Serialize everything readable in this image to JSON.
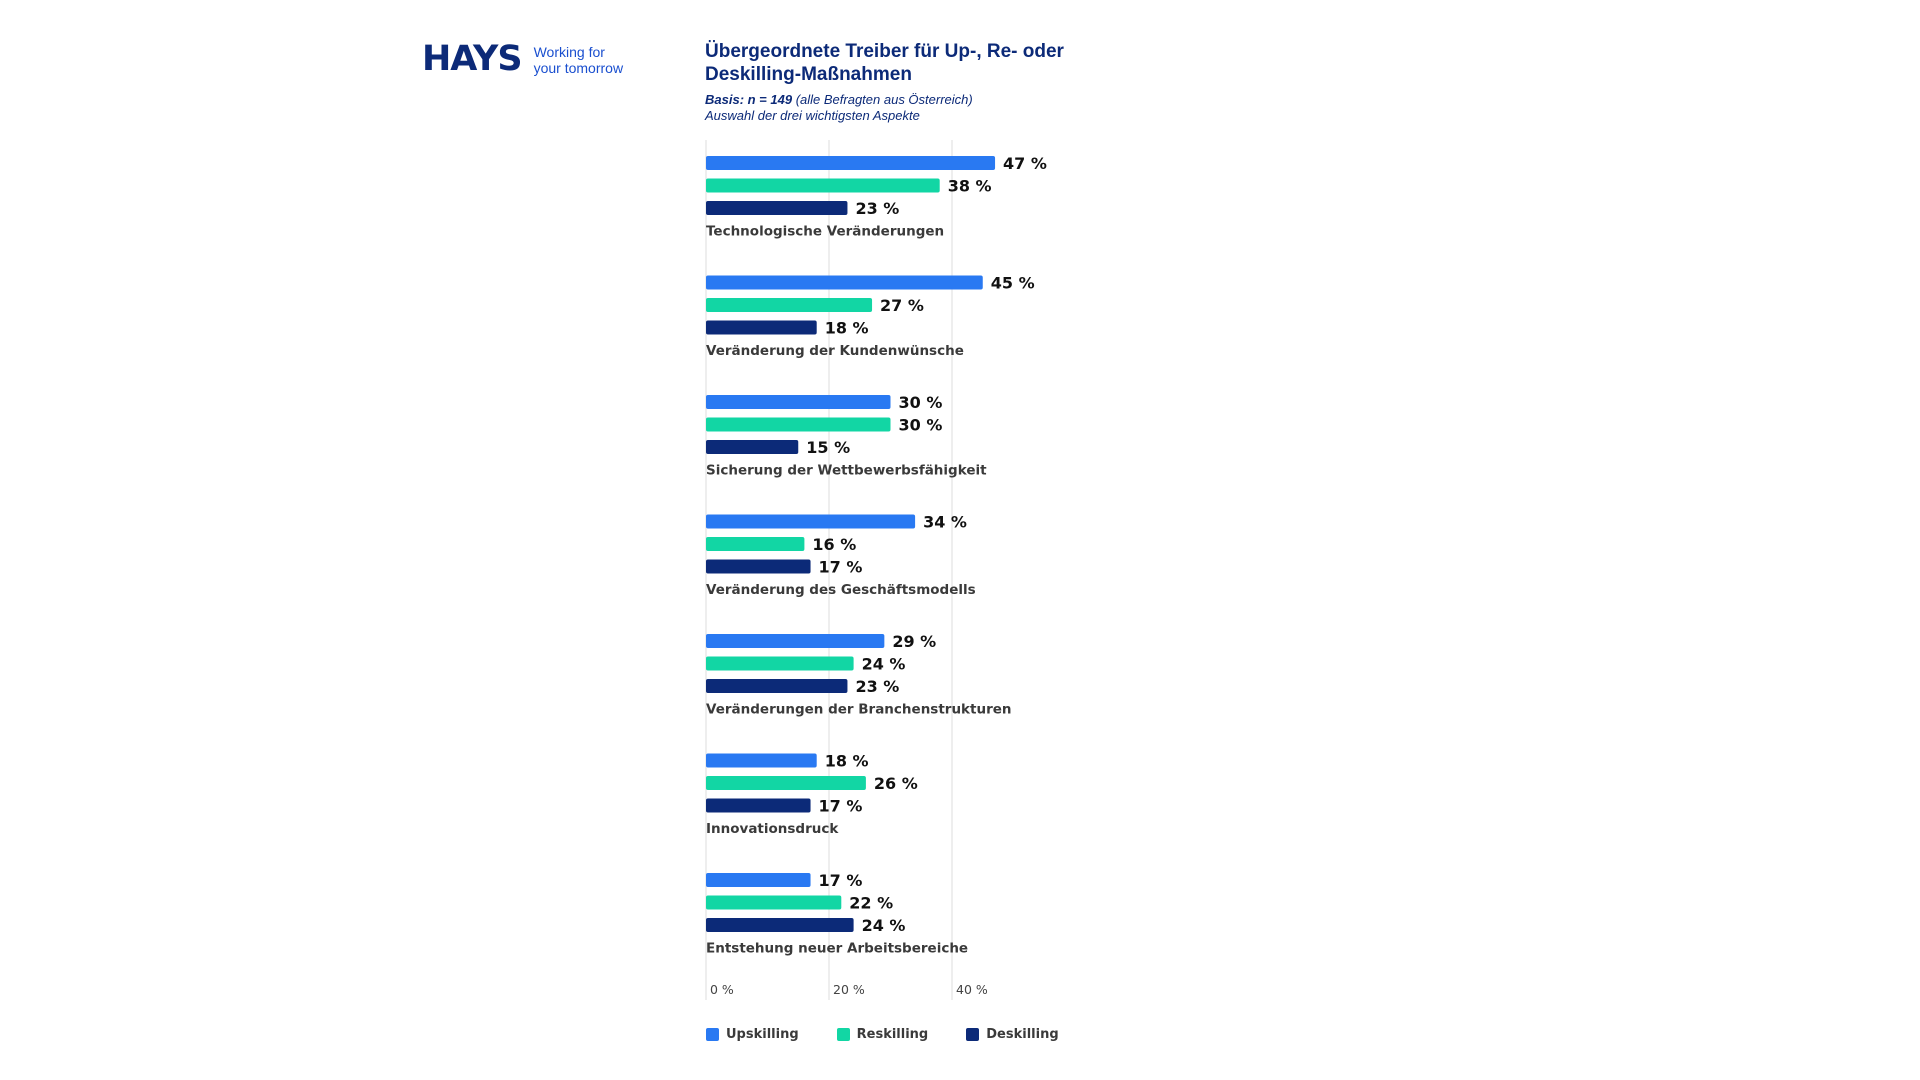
{
  "logo": {
    "brand": "HAYS",
    "tagline_1": "Working for",
    "tagline_2": "your tomorrow"
  },
  "header": {
    "title": "Übergeordnete Treiber für Up-, Re- oder Deskilling-Maßnahmen",
    "basis_bold": "Basis: n = 149",
    "basis_rest": " (alle Befragten aus Österreich)",
    "note": "Auswahl der drei wichtigsten Aspekte"
  },
  "colors": {
    "upskilling": "#2979f2",
    "reskilling": "#12d6a4",
    "deskilling": "#0c2a78",
    "grid": "#dddddd"
  },
  "chart_data": {
    "type": "bar",
    "orientation": "horizontal",
    "title": "Übergeordnete Treiber für Up-, Re- oder Deskilling-Maßnahmen",
    "xlim": [
      0,
      55
    ],
    "xticks": [
      0,
      20,
      40
    ],
    "tick_labels": [
      "0 %",
      "20 %",
      "40 %"
    ],
    "categories": [
      "Technologische Veränderungen",
      "Veränderung der Kundenwünsche",
      "Sicherung der Wettbewerbsfähigkeit",
      "Veränderung des Geschäftsmodells",
      "Veränderungen der Branchenstrukturen",
      "Innovationsdruck",
      "Entstehung neuer Arbeitsbereiche"
    ],
    "series": [
      {
        "name": "Upskilling",
        "values": [
          47,
          45,
          30,
          34,
          29,
          18,
          17
        ]
      },
      {
        "name": "Reskilling",
        "values": [
          38,
          27,
          30,
          16,
          24,
          26,
          22
        ]
      },
      {
        "name": "Deskilling",
        "values": [
          23,
          18,
          15,
          17,
          23,
          17,
          24
        ]
      }
    ],
    "value_suffix": " %",
    "legend_position": "bottom"
  }
}
